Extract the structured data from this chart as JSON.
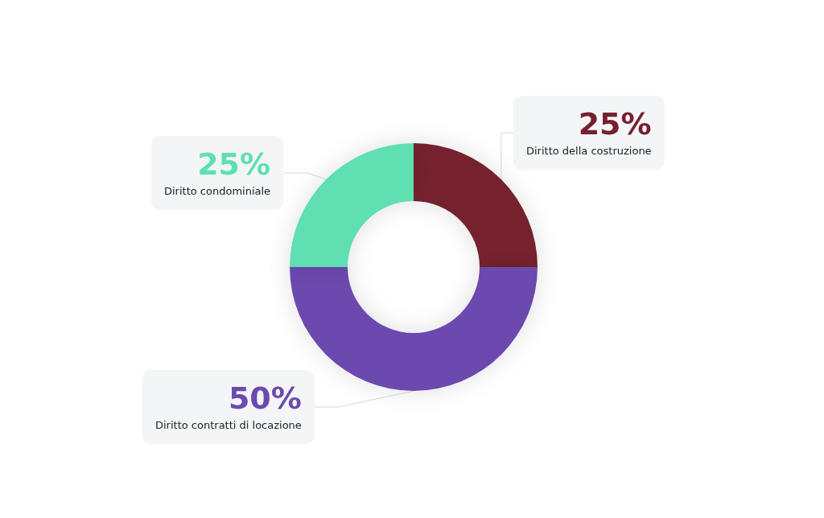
{
  "chart_data": {
    "type": "donut",
    "categories": [
      "Diritto della costruzione",
      "Diritto contratti di locazione",
      "Diritto condominiale"
    ],
    "values": [
      25,
      50,
      25
    ],
    "colors": [
      "#76202e",
      "#6c4aae",
      "#5edfb2"
    ],
    "value_labels": [
      "25%",
      "50%",
      "25%"
    ],
    "data_labels": true,
    "legend": false
  }
}
